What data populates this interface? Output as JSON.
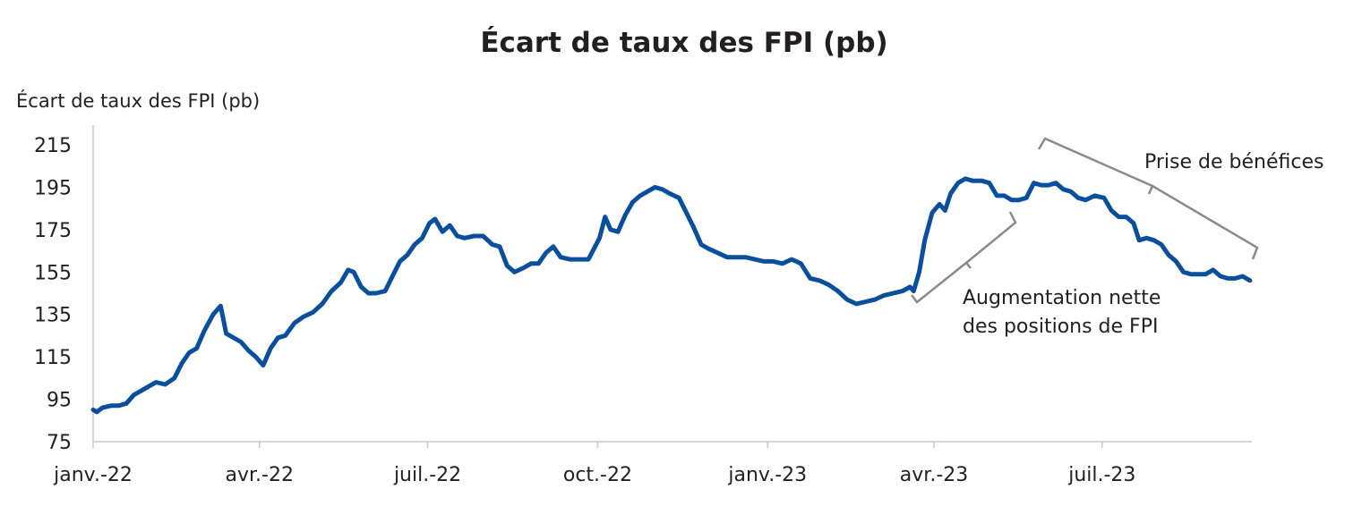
{
  "chart_data": {
    "type": "line",
    "title": "Écart de taux des FPI (pb)",
    "ylabel": "Écart de taux des FPI (pb)",
    "xlabel": "",
    "ylim": [
      75,
      215
    ],
    "yticks": [
      215,
      195,
      175,
      155,
      135,
      115,
      95,
      75
    ],
    "xlim": [
      "2022-01-01",
      "2023-09-20"
    ],
    "xticks": [
      {
        "date": "2022-01-01",
        "label": "janv.-22"
      },
      {
        "date": "2022-04-01",
        "label": "avr.-22"
      },
      {
        "date": "2022-07-01",
        "label": "juil.-22"
      },
      {
        "date": "2022-10-01",
        "label": "oct.-22"
      },
      {
        "date": "2023-01-01",
        "label": "janv.-23"
      },
      {
        "date": "2023-04-01",
        "label": "avr.-23"
      },
      {
        "date": "2023-07-01",
        "label": "juil.-23"
      }
    ],
    "grid": false,
    "series": [
      {
        "color": "#0a4f9c",
        "points": [
          [
            "2022-01-01",
            90
          ],
          [
            "2022-01-03",
            89
          ],
          [
            "2022-01-06",
            91
          ],
          [
            "2022-01-11",
            92
          ],
          [
            "2022-01-15",
            92
          ],
          [
            "2022-01-19",
            93
          ],
          [
            "2022-01-23",
            97
          ],
          [
            "2022-01-27",
            99
          ],
          [
            "2022-01-31",
            101
          ],
          [
            "2022-02-04",
            103
          ],
          [
            "2022-02-09",
            102
          ],
          [
            "2022-02-14",
            105
          ],
          [
            "2022-02-18",
            112
          ],
          [
            "2022-02-22",
            117
          ],
          [
            "2022-02-26",
            119
          ],
          [
            "2022-03-02",
            127
          ],
          [
            "2022-03-07",
            135
          ],
          [
            "2022-03-11",
            139
          ],
          [
            "2022-03-14",
            126
          ],
          [
            "2022-03-18",
            124
          ],
          [
            "2022-03-22",
            122
          ],
          [
            "2022-03-26",
            118
          ],
          [
            "2022-03-30",
            115
          ],
          [
            "2022-04-03",
            111
          ],
          [
            "2022-04-07",
            119
          ],
          [
            "2022-04-11",
            124
          ],
          [
            "2022-04-15",
            125
          ],
          [
            "2022-04-20",
            131
          ],
          [
            "2022-04-25",
            134
          ],
          [
            "2022-04-30",
            136
          ],
          [
            "2022-05-05",
            140
          ],
          [
            "2022-05-10",
            146
          ],
          [
            "2022-05-15",
            150
          ],
          [
            "2022-05-19",
            156
          ],
          [
            "2022-05-22",
            155
          ],
          [
            "2022-05-26",
            148
          ],
          [
            "2022-05-30",
            145
          ],
          [
            "2022-06-03",
            145
          ],
          [
            "2022-06-08",
            146
          ],
          [
            "2022-06-12",
            153
          ],
          [
            "2022-06-16",
            160
          ],
          [
            "2022-06-20",
            163
          ],
          [
            "2022-06-24",
            168
          ],
          [
            "2022-06-28",
            171
          ],
          [
            "2022-07-02",
            178
          ],
          [
            "2022-07-05",
            180
          ],
          [
            "2022-07-09",
            174
          ],
          [
            "2022-07-13",
            177
          ],
          [
            "2022-07-17",
            172
          ],
          [
            "2022-07-21",
            171
          ],
          [
            "2022-07-26",
            172
          ],
          [
            "2022-07-31",
            172
          ],
          [
            "2022-08-05",
            168
          ],
          [
            "2022-08-09",
            167
          ],
          [
            "2022-08-13",
            158
          ],
          [
            "2022-08-17",
            155
          ],
          [
            "2022-08-22",
            157
          ],
          [
            "2022-08-26",
            159
          ],
          [
            "2022-08-30",
            159
          ],
          [
            "2022-09-03",
            164
          ],
          [
            "2022-09-07",
            167
          ],
          [
            "2022-09-11",
            162
          ],
          [
            "2022-09-16",
            161
          ],
          [
            "2022-09-21",
            161
          ],
          [
            "2022-09-26",
            161
          ],
          [
            "2022-09-29",
            166
          ],
          [
            "2022-10-02",
            171
          ],
          [
            "2022-10-05",
            181
          ],
          [
            "2022-10-08",
            175
          ],
          [
            "2022-10-12",
            174
          ],
          [
            "2022-10-16",
            182
          ],
          [
            "2022-10-20",
            188
          ],
          [
            "2022-10-24",
            191
          ],
          [
            "2022-10-28",
            193
          ],
          [
            "2022-11-01",
            195
          ],
          [
            "2022-11-05",
            194
          ],
          [
            "2022-11-09",
            192
          ],
          [
            "2022-11-14",
            190
          ],
          [
            "2022-11-18",
            183
          ],
          [
            "2022-11-22",
            176
          ],
          [
            "2022-11-26",
            168
          ],
          [
            "2022-11-30",
            166
          ],
          [
            "2022-12-05",
            164
          ],
          [
            "2022-12-10",
            162
          ],
          [
            "2022-12-15",
            162
          ],
          [
            "2022-12-20",
            162
          ],
          [
            "2022-12-25",
            161
          ],
          [
            "2022-12-30",
            160
          ],
          [
            "2023-01-04",
            160
          ],
          [
            "2023-01-09",
            159
          ],
          [
            "2023-01-14",
            161
          ],
          [
            "2023-01-19",
            159
          ],
          [
            "2023-01-24",
            152
          ],
          [
            "2023-01-29",
            151
          ],
          [
            "2023-02-03",
            149
          ],
          [
            "2023-02-08",
            146
          ],
          [
            "2023-02-13",
            142
          ],
          [
            "2023-02-18",
            140
          ],
          [
            "2023-02-23",
            141
          ],
          [
            "2023-02-28",
            142
          ],
          [
            "2023-03-05",
            144
          ],
          [
            "2023-03-10",
            145
          ],
          [
            "2023-03-15",
            146
          ],
          [
            "2023-03-19",
            148
          ],
          [
            "2023-03-21",
            146
          ],
          [
            "2023-03-24",
            155
          ],
          [
            "2023-03-27",
            170
          ],
          [
            "2023-03-31",
            183
          ],
          [
            "2023-04-04",
            187
          ],
          [
            "2023-04-07",
            184
          ],
          [
            "2023-04-10",
            192
          ],
          [
            "2023-04-14",
            197
          ],
          [
            "2023-04-18",
            199
          ],
          [
            "2023-04-22",
            198
          ],
          [
            "2023-04-27",
            198
          ],
          [
            "2023-05-01",
            197
          ],
          [
            "2023-05-05",
            191
          ],
          [
            "2023-05-09",
            191
          ],
          [
            "2023-05-13",
            189
          ],
          [
            "2023-05-17",
            189
          ],
          [
            "2023-05-21",
            190
          ],
          [
            "2023-05-25",
            197
          ],
          [
            "2023-05-29",
            196
          ],
          [
            "2023-06-02",
            196
          ],
          [
            "2023-06-06",
            197
          ],
          [
            "2023-06-10",
            194
          ],
          [
            "2023-06-14",
            193
          ],
          [
            "2023-06-18",
            190
          ],
          [
            "2023-06-22",
            189
          ],
          [
            "2023-06-27",
            191
          ],
          [
            "2023-07-02",
            190
          ],
          [
            "2023-07-06",
            184
          ],
          [
            "2023-07-10",
            181
          ],
          [
            "2023-07-14",
            181
          ],
          [
            "2023-07-18",
            178
          ],
          [
            "2023-07-21",
            170
          ],
          [
            "2023-07-25",
            171
          ],
          [
            "2023-07-29",
            170
          ],
          [
            "2023-08-02",
            168
          ],
          [
            "2023-08-06",
            163
          ],
          [
            "2023-08-10",
            160
          ],
          [
            "2023-08-14",
            155
          ],
          [
            "2023-08-18",
            154
          ],
          [
            "2023-08-22",
            154
          ],
          [
            "2023-08-26",
            154
          ],
          [
            "2023-08-30",
            156
          ],
          [
            "2023-09-03",
            153
          ],
          [
            "2023-09-07",
            152
          ],
          [
            "2023-09-11",
            152
          ],
          [
            "2023-09-15",
            153
          ],
          [
            "2023-09-19",
            151
          ]
        ]
      }
    ],
    "annotations": [
      {
        "lines": [
          "Prise de bénéfices"
        ],
        "color": "#8a8a8a"
      },
      {
        "lines": [
          "Augmentation nette",
          "des positions de FPI"
        ],
        "color": "#8a8a8a"
      }
    ]
  }
}
